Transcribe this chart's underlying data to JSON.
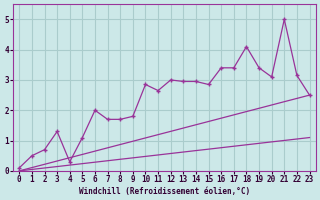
{
  "xlabel": "Windchill (Refroidissement éolien,°C)",
  "bg_color": "#cce8e8",
  "grid_color": "#aacccc",
  "line_color": "#993399",
  "spine_color": "#993399",
  "tick_color": "#330033",
  "x_data": [
    0,
    1,
    2,
    3,
    4,
    5,
    6,
    7,
    8,
    9,
    10,
    11,
    12,
    13,
    14,
    15,
    16,
    17,
    18,
    19,
    20,
    21,
    22,
    23
  ],
  "y_zigzag": [
    0.1,
    0.5,
    0.7,
    1.3,
    0.3,
    1.1,
    2.0,
    1.7,
    1.7,
    1.8,
    2.85,
    2.65,
    3.0,
    2.95,
    2.95,
    2.85,
    3.4,
    3.4,
    4.1,
    3.4,
    3.1,
    5.0,
    3.15,
    2.5
  ],
  "y_linear1": [
    0.0,
    0.109,
    0.217,
    0.326,
    0.435,
    0.543,
    0.652,
    0.761,
    0.87,
    0.978,
    1.087,
    1.196,
    1.304,
    1.413,
    1.522,
    1.63,
    1.739,
    1.848,
    1.957,
    2.065,
    2.174,
    2.283,
    2.391,
    2.5
  ],
  "y_linear2": [
    0.0,
    0.048,
    0.096,
    0.143,
    0.191,
    0.239,
    0.287,
    0.335,
    0.383,
    0.43,
    0.478,
    0.526,
    0.574,
    0.622,
    0.67,
    0.717,
    0.765,
    0.813,
    0.861,
    0.909,
    0.957,
    1.004,
    1.052,
    1.1
  ],
  "ylim": [
    0,
    5.5
  ],
  "xlim_min": -0.5,
  "xlim_max": 23.5,
  "yticks": [
    0,
    1,
    2,
    3,
    4,
    5
  ],
  "xticks": [
    0,
    1,
    2,
    3,
    4,
    5,
    6,
    7,
    8,
    9,
    10,
    11,
    12,
    13,
    14,
    15,
    16,
    17,
    18,
    19,
    20,
    21,
    22,
    23
  ],
  "tick_fontsize": 5.5,
  "xlabel_fontsize": 5.5
}
